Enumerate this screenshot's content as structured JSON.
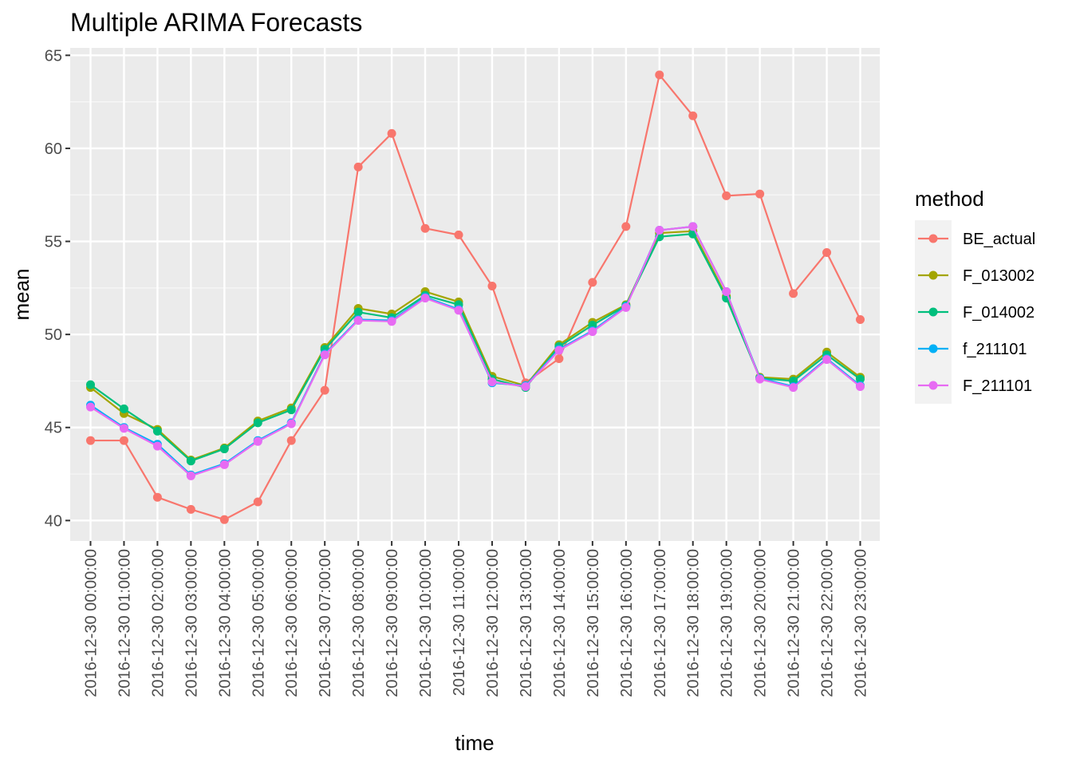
{
  "chart_data": {
    "type": "line",
    "title": "Multiple ARIMA Forecasts",
    "xlabel": "time",
    "ylabel": "mean",
    "ylim": [
      38.9,
      65.4
    ],
    "yticks": [
      40,
      45,
      50,
      55,
      60,
      65
    ],
    "ytick_labels": [
      "40",
      "45",
      "50",
      "55",
      "60",
      "65"
    ],
    "grid": true,
    "legend_title": "method",
    "legend_position": "right",
    "categories": [
      "2016-12-30 00:00:00",
      "2016-12-30 01:00:00",
      "2016-12-30 02:00:00",
      "2016-12-30 03:00:00",
      "2016-12-30 04:00:00",
      "2016-12-30 05:00:00",
      "2016-12-30 06:00:00",
      "2016-12-30 07:00:00",
      "2016-12-30 08:00:00",
      "2016-12-30 09:00:00",
      "2016-12-30 10:00:00",
      "2016-12-30 11:00:00",
      "2016-12-30 12:00:00",
      "2016-12-30 13:00:00",
      "2016-12-30 14:00:00",
      "2016-12-30 15:00:00",
      "2016-12-30 16:00:00",
      "2016-12-30 17:00:00",
      "2016-12-30 18:00:00",
      "2016-12-30 19:00:00",
      "2016-12-30 20:00:00",
      "2016-12-30 21:00:00",
      "2016-12-30 22:00:00",
      "2016-12-30 23:00:00"
    ],
    "series": [
      {
        "name": "BE_actual",
        "color": "#F8766D",
        "values": [
          44.3,
          44.3,
          41.25,
          40.6,
          40.05,
          41.0,
          44.3,
          47.0,
          59.0,
          60.8,
          55.7,
          55.35,
          52.6,
          47.4,
          48.7,
          52.8,
          55.8,
          63.95,
          61.75,
          57.45,
          57.55,
          52.2,
          54.4,
          50.8
        ]
      },
      {
        "name": "F_013002",
        "color": "#A3A500",
        "values": [
          47.15,
          45.75,
          44.9,
          43.25,
          43.9,
          45.35,
          46.05,
          49.3,
          51.4,
          51.1,
          52.3,
          51.75,
          47.75,
          47.25,
          49.45,
          50.65,
          51.6,
          55.45,
          55.55,
          52.05,
          47.7,
          47.6,
          49.05,
          47.7
        ]
      },
      {
        "name": "F_014002",
        "color": "#00BF7D",
        "values": [
          47.3,
          46.0,
          44.8,
          43.2,
          43.85,
          45.25,
          45.95,
          49.2,
          51.2,
          50.9,
          52.1,
          51.6,
          47.6,
          47.15,
          49.35,
          50.5,
          51.55,
          55.25,
          55.4,
          51.95,
          47.65,
          47.5,
          48.9,
          47.6
        ]
      },
      {
        "name": "f_211101",
        "color": "#00B0F6",
        "values": [
          46.2,
          45.0,
          44.1,
          42.45,
          43.05,
          44.3,
          45.25,
          48.95,
          50.8,
          50.75,
          52.0,
          51.35,
          47.4,
          47.25,
          49.2,
          50.2,
          51.5,
          55.6,
          55.8,
          52.3,
          47.65,
          47.2,
          48.7,
          47.25
        ]
      },
      {
        "name": "F_211101",
        "color": "#E76BF3",
        "values": [
          46.1,
          44.95,
          44.0,
          42.4,
          43.0,
          44.25,
          45.2,
          48.9,
          50.75,
          50.7,
          51.95,
          51.3,
          47.45,
          47.2,
          49.15,
          50.15,
          51.45,
          55.6,
          55.8,
          52.3,
          47.6,
          47.15,
          48.65,
          47.2
        ]
      }
    ]
  }
}
